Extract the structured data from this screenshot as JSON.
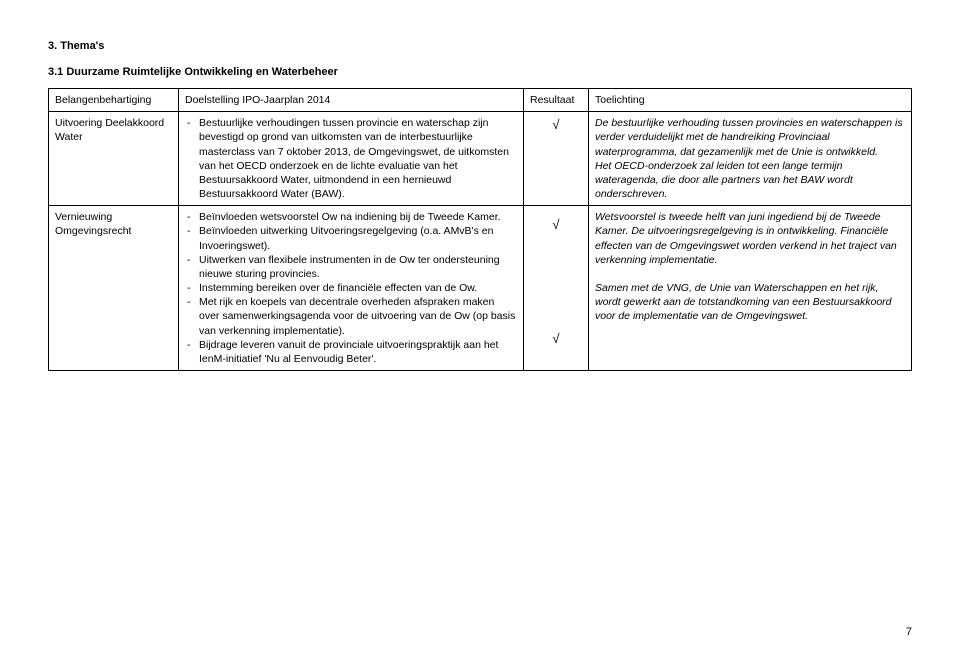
{
  "section_title": "3. Thema's",
  "subsection_title": "3.1  Duurzame Ruimtelijke Ontwikkeling en Waterbeheer",
  "table": {
    "headers": {
      "col1": "Belangenbehartiging",
      "col2": "Doelstelling IPO-Jaarplan 2014",
      "col3": "Resultaat",
      "col4": "Toelichting"
    },
    "rows": [
      {
        "col1": "Uitvoering Deelakkoord Water",
        "col2_items": [
          "Bestuurlijke verhoudingen tussen provincie en waterschap zijn bevestigd op grond van uitkomsten van de interbestuurlijke masterclass van 7 oktober 2013, de Omgevingswet, de uitkomsten van het OECD onderzoek en de lichte evaluatie van het Bestuursakkoord Water, uitmondend in een hernieuwd Bestuursakkoord Water (BAW)."
        ],
        "col3_marks": [
          "√"
        ],
        "col4_parts": [
          {
            "text": "De bestuurlijke verhouding tussen provincies en waterschappen is verder verduidelijkt met de handreiking Provinciaal waterprogramma, dat gezamenlijk met de Unie is ontwikkeld.",
            "italic": true
          },
          {
            "text": "Het OECD-onderzoek zal leiden tot een lange termijn wateragenda, die door alle partners van het BAW wordt onderschreven.",
            "italic": true
          }
        ]
      },
      {
        "col1": "Vernieuwing Omgevingsrecht",
        "col2_items": [
          "Beïnvloeden wetsvoorstel Ow na indiening bij de Tweede Kamer.",
          "Beïnvloeden uitwerking Uitvoeringsregelgeving (o.a. AMvB's en Invoeringswet).",
          "Uitwerken van flexibele instrumenten in de Ow ter ondersteuning nieuwe sturing provincies.",
          "Instemming bereiken over de financiële effecten van de Ow.",
          "Met rijk en koepels van decentrale overheden afspraken maken over samenwerkingsagenda voor de uitvoering van de Ow (op basis van verkenning implementatie).",
          "Bijdrage leveren vanuit de provinciale uitvoeringspraktijk aan het IenM-initiatief 'Nu al Eenvoudig Beter'."
        ],
        "col3_marks": [
          "√",
          "√"
        ],
        "col4_parts": [
          {
            "text": "Wetsvoorstel is tweede helft van juni ingediend bij de Tweede Kamer. ",
            "italic": true
          },
          {
            "text": "De uitvoeringsregelgeving is in ontwikkeling. ",
            "italic": true
          },
          {
            "text": "Financiële effecten van de Omgevingswet worden verkend in het traject van verkenning implementatie.",
            "italic": true
          },
          {
            "text": "Samen met de VNG, de Unie van Waterschappen en het rijk, wordt gewerkt aan de totstandkoming van een Bestuursakkoord voor de implementatie van de Omgevingswet.",
            "italic": true,
            "break_before": true
          }
        ]
      }
    ]
  },
  "page_number": "7"
}
